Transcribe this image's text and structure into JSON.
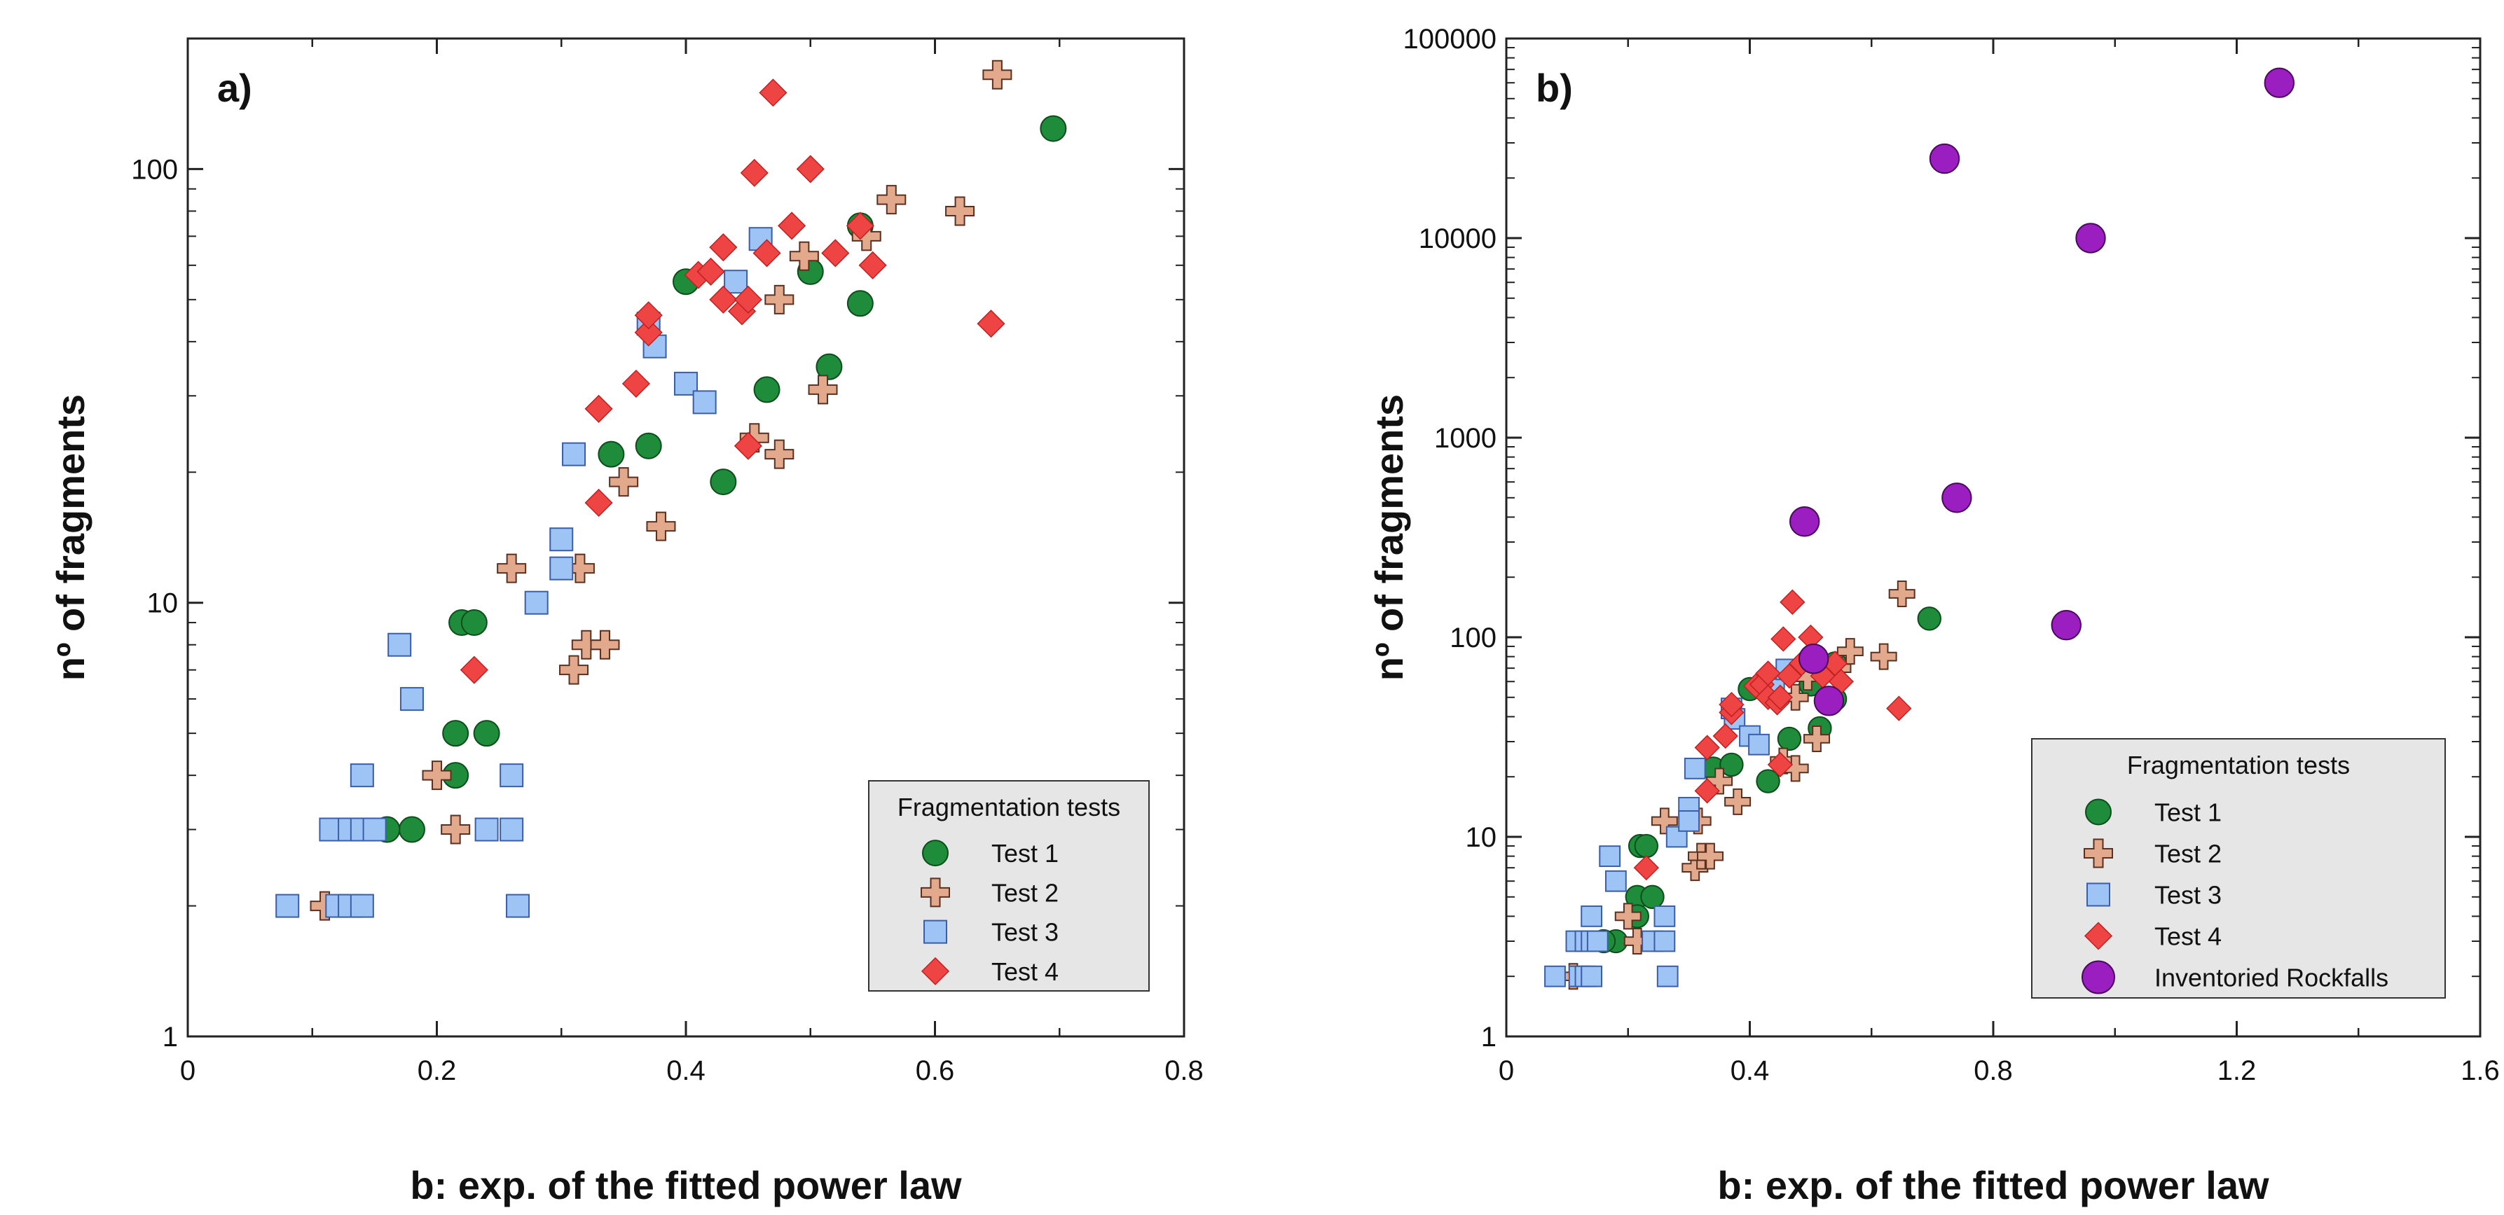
{
  "colors": {
    "test1": "#1e8c3a",
    "test2": "#e2a98c",
    "test3": "#9ec3f5",
    "test4": "#ee4444",
    "rockfalls": "#9b1ec0",
    "legend_bg": "#e6e6e6"
  },
  "chart_data": [
    {
      "type": "scatter",
      "panel_label": "a)",
      "xlabel": "b: exp. of the fitted power law",
      "ylabel": "nº of fragments",
      "xlim": [
        0,
        0.8
      ],
      "ylim": [
        1,
        200
      ],
      "yscale": "log",
      "xticks": [
        0,
        0.2,
        0.4,
        0.6,
        0.8
      ],
      "xtick_labels": [
        "0",
        "0.2",
        "0.4",
        "0.6",
        "0.8"
      ],
      "yticks": [
        1,
        10,
        100
      ],
      "ytick_labels": [
        "1",
        "10",
        "100"
      ],
      "legend": {
        "title": "Fragmentation tests",
        "position": "bottom-right"
      },
      "series": [
        {
          "name": "Test 1",
          "marker": "circle",
          "color_key": "test1",
          "points": [
            [
              0.18,
              3
            ],
            [
              0.16,
              3
            ],
            [
              0.215,
              5
            ],
            [
              0.215,
              4
            ],
            [
              0.22,
              9
            ],
            [
              0.23,
              9
            ],
            [
              0.24,
              5
            ],
            [
              0.34,
              22
            ],
            [
              0.37,
              23
            ],
            [
              0.4,
              55
            ],
            [
              0.43,
              19
            ],
            [
              0.465,
              31
            ],
            [
              0.5,
              58
            ],
            [
              0.515,
              35
            ],
            [
              0.54,
              49
            ],
            [
              0.54,
              74
            ],
            [
              0.695,
              124
            ]
          ]
        },
        {
          "name": "Test 2",
          "marker": "plus",
          "color_key": "test2",
          "points": [
            [
              0.11,
              2
            ],
            [
              0.2,
              4
            ],
            [
              0.215,
              3
            ],
            [
              0.26,
              12
            ],
            [
              0.31,
              7
            ],
            [
              0.315,
              12
            ],
            [
              0.32,
              8
            ],
            [
              0.335,
              8
            ],
            [
              0.35,
              19
            ],
            [
              0.38,
              15
            ],
            [
              0.455,
              24
            ],
            [
              0.475,
              22
            ],
            [
              0.475,
              50
            ],
            [
              0.495,
              63
            ],
            [
              0.51,
              31
            ],
            [
              0.545,
              70
            ],
            [
              0.565,
              85
            ],
            [
              0.62,
              80
            ],
            [
              0.65,
              165
            ]
          ]
        },
        {
          "name": "Test 3",
          "marker": "square",
          "color_key": "test3",
          "points": [
            [
              0.08,
              2
            ],
            [
              0.12,
              2
            ],
            [
              0.13,
              2
            ],
            [
              0.14,
              2
            ],
            [
              0.115,
              3
            ],
            [
              0.13,
              3
            ],
            [
              0.14,
              3
            ],
            [
              0.14,
              4
            ],
            [
              0.15,
              3
            ],
            [
              0.17,
              8
            ],
            [
              0.18,
              6
            ],
            [
              0.24,
              3
            ],
            [
              0.26,
              3
            ],
            [
              0.26,
              4
            ],
            [
              0.265,
              2
            ],
            [
              0.28,
              10
            ],
            [
              0.3,
              14
            ],
            [
              0.3,
              12
            ],
            [
              0.31,
              22
            ],
            [
              0.37,
              44
            ],
            [
              0.375,
              39
            ],
            [
              0.4,
              32
            ],
            [
              0.415,
              29
            ],
            [
              0.44,
              55
            ],
            [
              0.46,
              69
            ]
          ]
        },
        {
          "name": "Test 4",
          "marker": "diamond",
          "color_key": "test4",
          "points": [
            [
              0.23,
              7
            ],
            [
              0.33,
              17
            ],
            [
              0.33,
              28
            ],
            [
              0.36,
              32
            ],
            [
              0.37,
              42
            ],
            [
              0.37,
              46
            ],
            [
              0.41,
              57
            ],
            [
              0.42,
              58
            ],
            [
              0.43,
              66
            ],
            [
              0.43,
              50
            ],
            [
              0.445,
              47
            ],
            [
              0.45,
              23
            ],
            [
              0.45,
              50
            ],
            [
              0.455,
              98
            ],
            [
              0.465,
              64
            ],
            [
              0.47,
              150
            ],
            [
              0.485,
              74
            ],
            [
              0.5,
              100
            ],
            [
              0.52,
              64
            ],
            [
              0.54,
              74
            ],
            [
              0.55,
              60
            ],
            [
              0.645,
              44
            ]
          ]
        }
      ]
    },
    {
      "type": "scatter",
      "panel_label": "b)",
      "xlabel": "b: exp. of the fitted power law",
      "ylabel": "nº of fragments",
      "xlim": [
        0,
        1.6
      ],
      "ylim": [
        1,
        100000
      ],
      "yscale": "log",
      "xticks": [
        0,
        0.4,
        0.8,
        1.2,
        1.6
      ],
      "xtick_labels": [
        "0",
        "0.4",
        "0.8",
        "1.2",
        "1.6"
      ],
      "yticks": [
        1,
        10,
        100,
        1000,
        10000,
        100000
      ],
      "ytick_labels": [
        "1",
        "10",
        "100",
        "1000",
        "10000",
        "100000"
      ],
      "legend": {
        "title": "Fragmentation tests",
        "position": "bottom-right"
      },
      "series": [
        {
          "name": "Test 1",
          "marker": "circle",
          "color_key": "test1",
          "points": [
            [
              0.18,
              3
            ],
            [
              0.16,
              3
            ],
            [
              0.215,
              5
            ],
            [
              0.215,
              4
            ],
            [
              0.22,
              9
            ],
            [
              0.23,
              9
            ],
            [
              0.24,
              5
            ],
            [
              0.34,
              22
            ],
            [
              0.37,
              23
            ],
            [
              0.4,
              55
            ],
            [
              0.43,
              19
            ],
            [
              0.465,
              31
            ],
            [
              0.5,
              58
            ],
            [
              0.515,
              35
            ],
            [
              0.54,
              49
            ],
            [
              0.54,
              74
            ],
            [
              0.695,
              124
            ]
          ]
        },
        {
          "name": "Test 2",
          "marker": "plus",
          "color_key": "test2",
          "points": [
            [
              0.11,
              2
            ],
            [
              0.2,
              4
            ],
            [
              0.215,
              3
            ],
            [
              0.26,
              12
            ],
            [
              0.31,
              7
            ],
            [
              0.315,
              12
            ],
            [
              0.32,
              8
            ],
            [
              0.335,
              8
            ],
            [
              0.35,
              19
            ],
            [
              0.38,
              15
            ],
            [
              0.455,
              24
            ],
            [
              0.475,
              22
            ],
            [
              0.475,
              50
            ],
            [
              0.495,
              63
            ],
            [
              0.51,
              31
            ],
            [
              0.545,
              70
            ],
            [
              0.565,
              85
            ],
            [
              0.62,
              80
            ],
            [
              0.65,
              165
            ]
          ]
        },
        {
          "name": "Test 3",
          "marker": "square",
          "color_key": "test3",
          "points": [
            [
              0.08,
              2
            ],
            [
              0.12,
              2
            ],
            [
              0.13,
              2
            ],
            [
              0.14,
              2
            ],
            [
              0.115,
              3
            ],
            [
              0.13,
              3
            ],
            [
              0.14,
              3
            ],
            [
              0.14,
              4
            ],
            [
              0.15,
              3
            ],
            [
              0.17,
              8
            ],
            [
              0.18,
              6
            ],
            [
              0.24,
              3
            ],
            [
              0.26,
              3
            ],
            [
              0.26,
              4
            ],
            [
              0.265,
              2
            ],
            [
              0.28,
              10
            ],
            [
              0.3,
              14
            ],
            [
              0.3,
              12
            ],
            [
              0.31,
              22
            ],
            [
              0.37,
              44
            ],
            [
              0.375,
              39
            ],
            [
              0.4,
              32
            ],
            [
              0.415,
              29
            ],
            [
              0.44,
              55
            ],
            [
              0.46,
              69
            ]
          ]
        },
        {
          "name": "Test 4",
          "marker": "diamond",
          "color_key": "test4",
          "points": [
            [
              0.23,
              7
            ],
            [
              0.33,
              17
            ],
            [
              0.33,
              28
            ],
            [
              0.36,
              32
            ],
            [
              0.37,
              42
            ],
            [
              0.37,
              46
            ],
            [
              0.41,
              57
            ],
            [
              0.42,
              58
            ],
            [
              0.43,
              66
            ],
            [
              0.43,
              50
            ],
            [
              0.445,
              47
            ],
            [
              0.45,
              23
            ],
            [
              0.45,
              50
            ],
            [
              0.455,
              98
            ],
            [
              0.465,
              64
            ],
            [
              0.47,
              150
            ],
            [
              0.485,
              74
            ],
            [
              0.5,
              100
            ],
            [
              0.52,
              64
            ],
            [
              0.54,
              74
            ],
            [
              0.55,
              60
            ],
            [
              0.645,
              44
            ]
          ]
        },
        {
          "name": "Inventoried Rockfalls",
          "marker": "bigcircle",
          "color_key": "rockfalls",
          "points": [
            [
              1.27,
              60000
            ],
            [
              0.72,
              25000
            ],
            [
              0.96,
              10000
            ],
            [
              0.49,
              380
            ],
            [
              0.74,
              500
            ],
            [
              0.92,
              115
            ],
            [
              0.505,
              78
            ],
            [
              0.53,
              48
            ]
          ]
        }
      ]
    }
  ]
}
